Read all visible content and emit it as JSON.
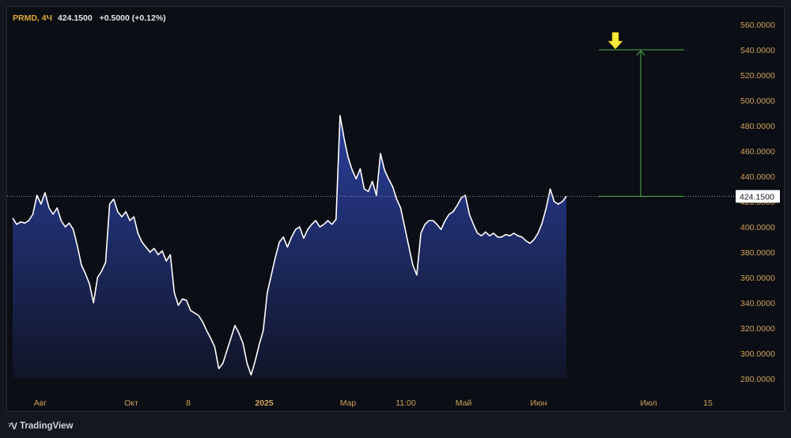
{
  "legend": {
    "symbol": "PRMD, 4Ч",
    "last": "424.1500",
    "change": "+0.5000 (+0.12%)"
  },
  "brand": {
    "name": "TradingView",
    "logo_icon": "tradingview-logo-icon"
  },
  "colors": {
    "background": "#0b0e14",
    "line": "#ffffff",
    "area_top": "#2a3f9e",
    "area_bottom": "#111527",
    "axis_text": "#d1a25a",
    "projection": "#4caf50",
    "arrow": "#ffeb3b"
  },
  "chart_data": {
    "type": "area",
    "ylim": [
      272,
      568
    ],
    "y_ticks": [
      280,
      300,
      320,
      340,
      360,
      380,
      400,
      420,
      440,
      460,
      480,
      500,
      520,
      540,
      560
    ],
    "y_tick_labels": [
      "280.0000",
      "300.0000",
      "320.0000",
      "340.0000",
      "360.0000",
      "380.0000",
      "400.0000",
      "420.0000",
      "440.0000",
      "460.0000",
      "480.0000",
      "500.0000",
      "520.0000",
      "540.0000",
      "560.0000"
    ],
    "x_ticks": [
      "Авг",
      "Окт",
      "8",
      "2025",
      "Мар",
      "11:00",
      "Май",
      "Июн",
      "Июл",
      "15"
    ],
    "x_tick_bold": [
      false,
      false,
      false,
      true,
      false,
      false,
      false,
      false,
      false,
      false
    ],
    "last_price": 424.15,
    "last_price_label": "424.1500",
    "projection": {
      "from": 424.15,
      "to": 540
    },
    "annotation_text": "",
    "series": [
      {
        "values": [
          407,
          402,
          404,
          403,
          405,
          410,
          425,
          418,
          427,
          415,
          410,
          415,
          405,
          400,
          403,
          398,
          385,
          370,
          363,
          355,
          340,
          360,
          365,
          372,
          418,
          422,
          412,
          408,
          412,
          405,
          408,
          395,
          388,
          384,
          380,
          383,
          378,
          381,
          373,
          378,
          348,
          338,
          343,
          342,
          334,
          332,
          330,
          325,
          318,
          312,
          305,
          288,
          292,
          302,
          312,
          322,
          316,
          308,
          292,
          283,
          294,
          307,
          318,
          348,
          362,
          376,
          388,
          392,
          384,
          392,
          398,
          400,
          391,
          398,
          402,
          405,
          400,
          402,
          405,
          402,
          406,
          488,
          470,
          455,
          445,
          438,
          446,
          430,
          428,
          436,
          425,
          458,
          445,
          438,
          432,
          422,
          415,
          400,
          385,
          370,
          362,
          395,
          402,
          405,
          405,
          402,
          398,
          405,
          410,
          412,
          417,
          423,
          425,
          410,
          402,
          395,
          393,
          396,
          393,
          395,
          392,
          392,
          394,
          393,
          395,
          393,
          392,
          389,
          387,
          390,
          395,
          403,
          415,
          430,
          420,
          418,
          420,
          424.15
        ]
      }
    ]
  }
}
